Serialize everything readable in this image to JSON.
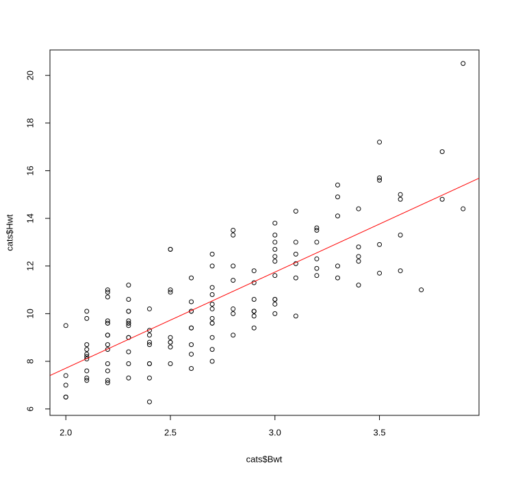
{
  "chart_data": {
    "type": "scatter",
    "x_label": "cats$Bwt",
    "y_label": "cats$Hwt",
    "xlim": [
      1.924,
      3.976
    ],
    "ylim": [
      5.732,
      21.068
    ],
    "xticks": [
      {
        "value": 2,
        "label": "2.0"
      },
      {
        "value": 2.5,
        "label": "2.5"
      },
      {
        "value": 3,
        "label": "3.0"
      },
      {
        "value": 3.5,
        "label": "3.5"
      }
    ],
    "yticks": [
      6,
      8,
      10,
      12,
      14,
      16,
      18,
      20
    ],
    "point_color": "#000000",
    "x": [
      2.0,
      2.0,
      2.0,
      2.1,
      2.1,
      2.1,
      2.1,
      2.1,
      2.1,
      2.1,
      2.1,
      2.1,
      2.2,
      2.2,
      2.2,
      2.2,
      2.2,
      2.2,
      2.3,
      2.3,
      2.3,
      2.3,
      2.3,
      2.3,
      2.3,
      2.3,
      2.3,
      2.3,
      2.3,
      2.3,
      2.4,
      2.4,
      2.4,
      2.4,
      2.5,
      2.5,
      2.6,
      2.6,
      2.6,
      2.7,
      2.7,
      2.7,
      2.9,
      2.9,
      2.9,
      3.0,
      3.0,
      2.0,
      2.0,
      2.1,
      2.2,
      2.2,
      2.2,
      2.2,
      2.2,
      2.2,
      2.2,
      2.2,
      2.3,
      2.4,
      2.4,
      2.4,
      2.4,
      2.4,
      2.5,
      2.5,
      2.5,
      2.5,
      2.5,
      2.5,
      2.5,
      2.6,
      2.6,
      2.6,
      2.6,
      2.6,
      2.6,
      2.7,
      2.7,
      2.7,
      2.7,
      2.7,
      2.7,
      2.7,
      2.7,
      2.7,
      2.8,
      2.8,
      2.8,
      2.8,
      2.8,
      2.8,
      2.8,
      2.9,
      2.9,
      2.9,
      2.9,
      2.9,
      3.0,
      3.0,
      3.0,
      3.0,
      3.0,
      3.0,
      3.0,
      3.0,
      3.0,
      3.1,
      3.1,
      3.1,
      3.1,
      3.1,
      3.1,
      3.2,
      3.2,
      3.2,
      3.2,
      3.2,
      3.2,
      3.3,
      3.3,
      3.3,
      3.3,
      3.3,
      3.4,
      3.4,
      3.4,
      3.4,
      3.4,
      3.5,
      3.5,
      3.5,
      3.5,
      3.5,
      3.6,
      3.6,
      3.6,
      3.6,
      3.7,
      3.8,
      3.8,
      3.9,
      3.9
    ],
    "values": [
      7.0,
      7.4,
      9.5,
      7.2,
      7.3,
      7.6,
      8.1,
      8.2,
      8.3,
      8.5,
      8.7,
      9.8,
      7.1,
      8.7,
      9.1,
      9.7,
      10.9,
      11.0,
      7.3,
      7.9,
      8.4,
      9.0,
      9.0,
      9.5,
      9.6,
      9.7,
      10.1,
      10.1,
      10.6,
      11.2,
      6.3,
      8.7,
      8.8,
      10.2,
      9.0,
      10.9,
      8.7,
      10.1,
      10.1,
      8.5,
      10.2,
      10.8,
      9.9,
      10.1,
      10.1,
      10.6,
      13.0,
      6.5,
      6.5,
      10.1,
      7.2,
      7.6,
      7.9,
      8.5,
      9.1,
      9.6,
      9.6,
      10.7,
      9.6,
      7.3,
      7.9,
      7.9,
      9.1,
      9.3,
      7.9,
      8.6,
      8.8,
      8.8,
      11.0,
      12.7,
      12.7,
      7.7,
      8.3,
      9.4,
      9.4,
      10.5,
      11.5,
      8.0,
      9.0,
      9.6,
      9.6,
      9.8,
      10.4,
      11.1,
      12.0,
      12.5,
      9.1,
      10.0,
      10.2,
      11.4,
      12.0,
      13.3,
      13.5,
      9.4,
      10.1,
      10.6,
      11.3,
      11.8,
      10.0,
      10.4,
      10.6,
      11.6,
      12.2,
      12.4,
      12.7,
      13.3,
      13.8,
      9.9,
      11.5,
      12.1,
      12.5,
      13.0,
      14.3,
      11.6,
      11.9,
      12.3,
      13.0,
      13.5,
      13.6,
      11.5,
      12.0,
      14.1,
      14.9,
      15.4,
      11.2,
      12.2,
      12.4,
      12.8,
      14.4,
      11.7,
      12.9,
      15.6,
      15.7,
      17.2,
      11.8,
      13.3,
      14.8,
      15.0,
      11.0,
      14.8,
      16.8,
      14.4,
      20.5
    ],
    "fit_line": {
      "intercept": -0.3567,
      "slope": 4.0341,
      "color": "#ff0000"
    }
  }
}
